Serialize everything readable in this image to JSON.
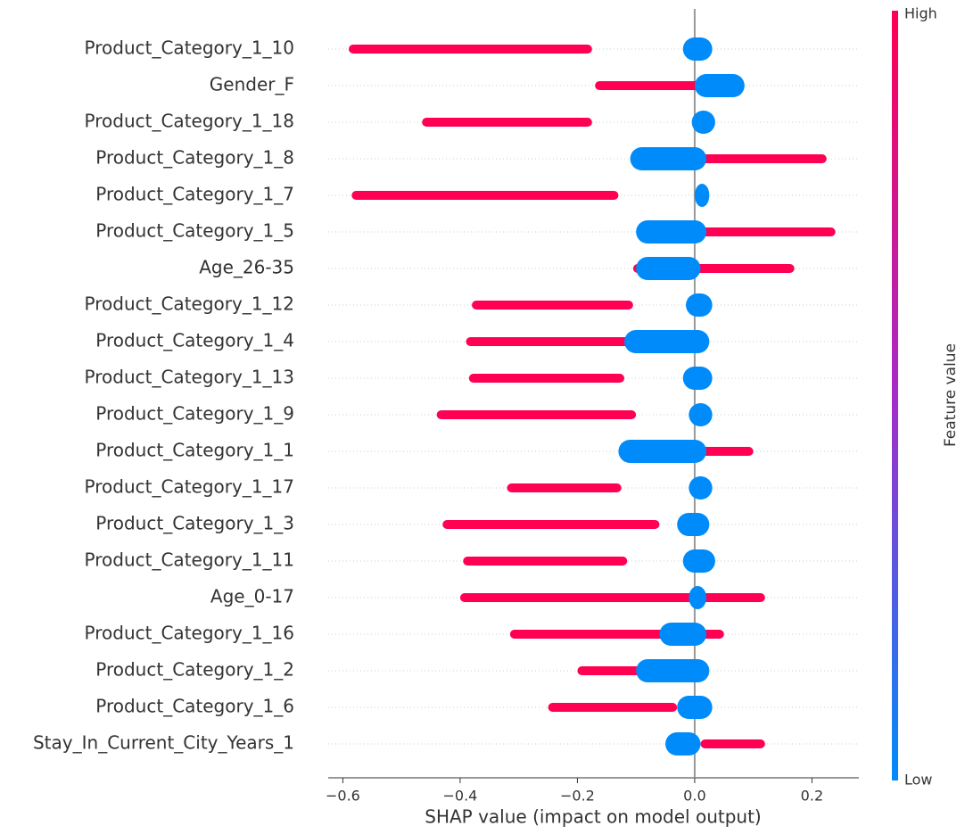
{
  "chart_data": {
    "type": "beeswarm",
    "xlabel": "SHAP value (impact on model output)",
    "colorbar_label": "Feature value",
    "categories": [
      "Product_Category_1_10",
      "Gender_F",
      "Product_Category_1_18",
      "Product_Category_1_8",
      "Product_Category_1_7",
      "Product_Category_1_5",
      "Age_26-35",
      "Product_Category_1_12",
      "Product_Category_1_4",
      "Product_Category_1_13",
      "Product_Category_1_9",
      "Product_Category_1_1",
      "Product_Category_1_17",
      "Product_Category_1_3",
      "Product_Category_1_11",
      "Age_0-17",
      "Product_Category_1_16",
      "Product_Category_1_2",
      "Product_Category_1_6",
      "Stay_In_Current_City_Years_1"
    ],
    "series": [
      {
        "name": "High",
        "color": "#ff0052",
        "values": [
          [
            -0.59,
            -0.175
          ],
          [
            -0.17,
            0.01
          ],
          [
            -0.465,
            -0.175
          ],
          [
            0.01,
            0.225
          ],
          [
            -0.585,
            -0.13
          ],
          [
            0.01,
            0.24
          ],
          [
            -0.105,
            0.17
          ],
          [
            -0.38,
            -0.105
          ],
          [
            -0.39,
            -0.1
          ],
          [
            -0.385,
            -0.12
          ],
          [
            -0.44,
            -0.1
          ],
          [
            -0.05,
            0.1
          ],
          [
            -0.32,
            -0.125
          ],
          [
            -0.43,
            -0.06
          ],
          [
            -0.395,
            -0.115
          ],
          [
            -0.4,
            0.12
          ],
          [
            -0.315,
            0.05
          ],
          [
            -0.2,
            -0.02
          ],
          [
            -0.25,
            -0.03
          ],
          [
            0.01,
            0.12
          ]
        ]
      },
      {
        "name": "Low",
        "color": "#008bfb",
        "values": [
          [
            -0.02,
            0.03
          ],
          [
            0.0,
            0.085
          ],
          [
            -0.005,
            0.035
          ],
          [
            -0.11,
            0.02
          ],
          [
            0.0,
            0.025
          ],
          [
            -0.1,
            0.02
          ],
          [
            -0.1,
            0.01
          ],
          [
            -0.015,
            0.03
          ],
          [
            -0.12,
            0.025
          ],
          [
            -0.02,
            0.03
          ],
          [
            -0.01,
            0.03
          ],
          [
            -0.13,
            0.02
          ],
          [
            -0.01,
            0.03
          ],
          [
            -0.03,
            0.025
          ],
          [
            -0.02,
            0.035
          ],
          [
            -0.01,
            0.02
          ],
          [
            -0.06,
            0.02
          ],
          [
            -0.1,
            0.025
          ],
          [
            -0.03,
            0.03
          ],
          [
            -0.05,
            0.01
          ]
        ]
      }
    ],
    "xlim": [
      -0.625,
      0.28
    ],
    "xticks": [
      {
        "value": -0.6,
        "label": "−0.6"
      },
      {
        "value": -0.4,
        "label": "−0.4"
      },
      {
        "value": -0.2,
        "label": "−0.2"
      },
      {
        "value": 0.0,
        "label": "0.0"
      },
      0.2
    ],
    "grid": true
  }
}
